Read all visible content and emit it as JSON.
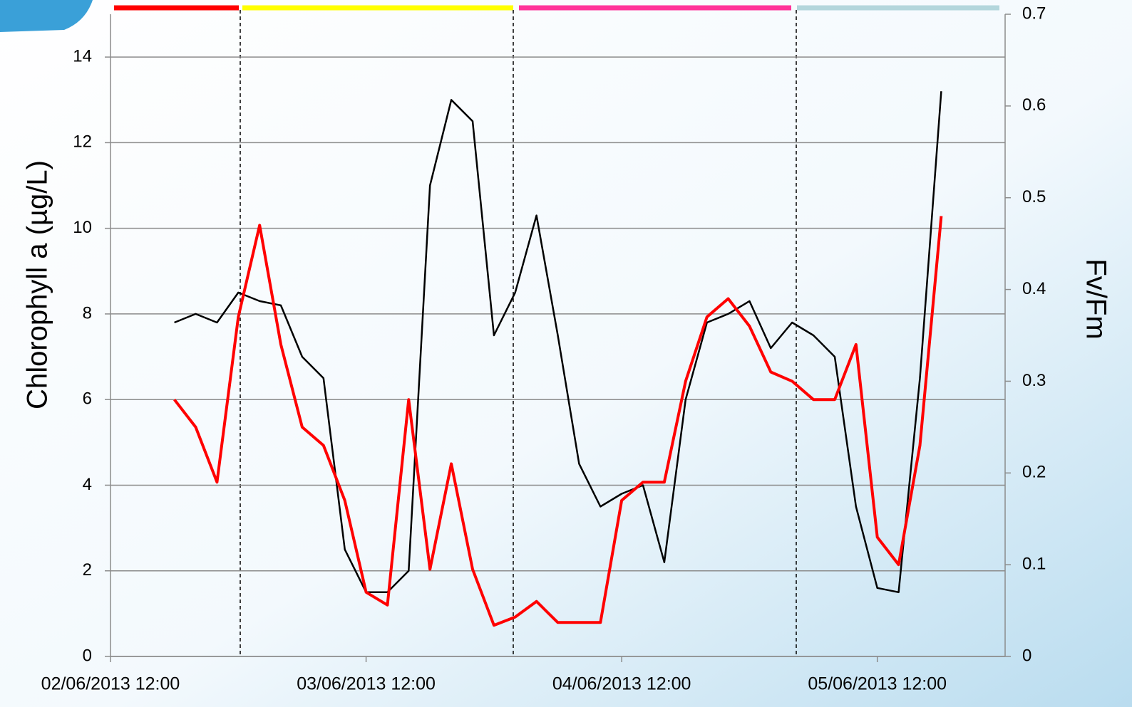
{
  "chart_data": {
    "type": "line",
    "y_label": "Chlorophyll a (µg/L)",
    "y2_label": "Fv/Fm",
    "x": [
      "2013-06-02T18:00",
      "2013-06-02T20:00",
      "2013-06-02T22:00",
      "2013-06-03T00:00",
      "2013-06-03T02:00",
      "2013-06-03T04:00",
      "2013-06-03T06:00",
      "2013-06-03T08:00",
      "2013-06-03T10:00",
      "2013-06-03T12:00",
      "2013-06-03T14:00",
      "2013-06-03T16:00",
      "2013-06-03T18:00",
      "2013-06-03T20:00",
      "2013-06-03T22:00",
      "2013-06-04T00:00",
      "2013-06-04T02:00",
      "2013-06-04T04:00",
      "2013-06-04T06:00",
      "2013-06-04T08:00",
      "2013-06-04T10:00",
      "2013-06-04T12:00",
      "2013-06-04T14:00",
      "2013-06-04T16:00",
      "2013-06-04T18:00",
      "2013-06-04T20:00",
      "2013-06-04T22:00",
      "2013-06-05T00:00",
      "2013-06-05T02:00",
      "2013-06-05T04:00",
      "2013-06-05T06:00",
      "2013-06-05T08:00",
      "2013-06-05T10:00",
      "2013-06-05T12:00",
      "2013-06-05T14:00",
      "2013-06-05T16:00",
      "2013-06-05T18:00"
    ],
    "series": [
      {
        "name": "Chlorophyll a",
        "color": "#000000",
        "axis": "y",
        "values": [
          7.8,
          8.0,
          7.8,
          8.5,
          8.3,
          8.2,
          7.0,
          6.5,
          2.5,
          1.5,
          1.5,
          2.0,
          11,
          13,
          12.5,
          7.5,
          8.5,
          10.3,
          7.5,
          4.5,
          3.5,
          3.8,
          4.0,
          2.2,
          6.0,
          7.8,
          8.0,
          8.3,
          7.2,
          7.8,
          7.5,
          7.0,
          3.5,
          1.6,
          1.5,
          6.5,
          13.2
        ]
      },
      {
        "name": "Fv/Fm",
        "color": "#ff0000",
        "axis": "y2",
        "values": [
          0.28,
          0.25,
          0.19,
          0.37,
          0.47,
          0.34,
          0.25,
          0.23,
          0.17,
          0.07,
          0.056,
          0.28,
          0.095,
          0.21,
          0.095,
          0.034,
          0.043,
          0.06,
          0.037,
          0.037,
          0.037,
          0.17,
          0.19,
          0.19,
          0.3,
          0.37,
          0.39,
          0.36,
          0.31,
          0.3,
          0.28,
          0.28,
          0.34,
          0.13,
          0.1,
          0.23,
          0.48
        ]
      }
    ],
    "xlim": [
      "2013-06-02T12:00",
      "2013-06-06T00:00"
    ],
    "xticks": [
      {
        "value": "2013-06-02T12:00",
        "label": "02/06/2013 12:00"
      },
      {
        "value": "2013-06-03T12:00",
        "label": "03/06/2013 12:00"
      },
      {
        "value": "2013-06-04T12:00",
        "label": "04/06/2013 12:00"
      },
      {
        "value": "2013-06-05T12:00",
        "label": "05/06/2013 12:00"
      }
    ],
    "ylim": [
      0,
      15
    ],
    "yticks": [
      0,
      2,
      4,
      6,
      8,
      10,
      12,
      14
    ],
    "y2lim": [
      0,
      0.7
    ],
    "y2ticks": [
      0,
      0.1,
      0.2,
      0.3,
      0.4,
      0.5,
      0.6,
      0.7
    ],
    "grid": true
  }
}
